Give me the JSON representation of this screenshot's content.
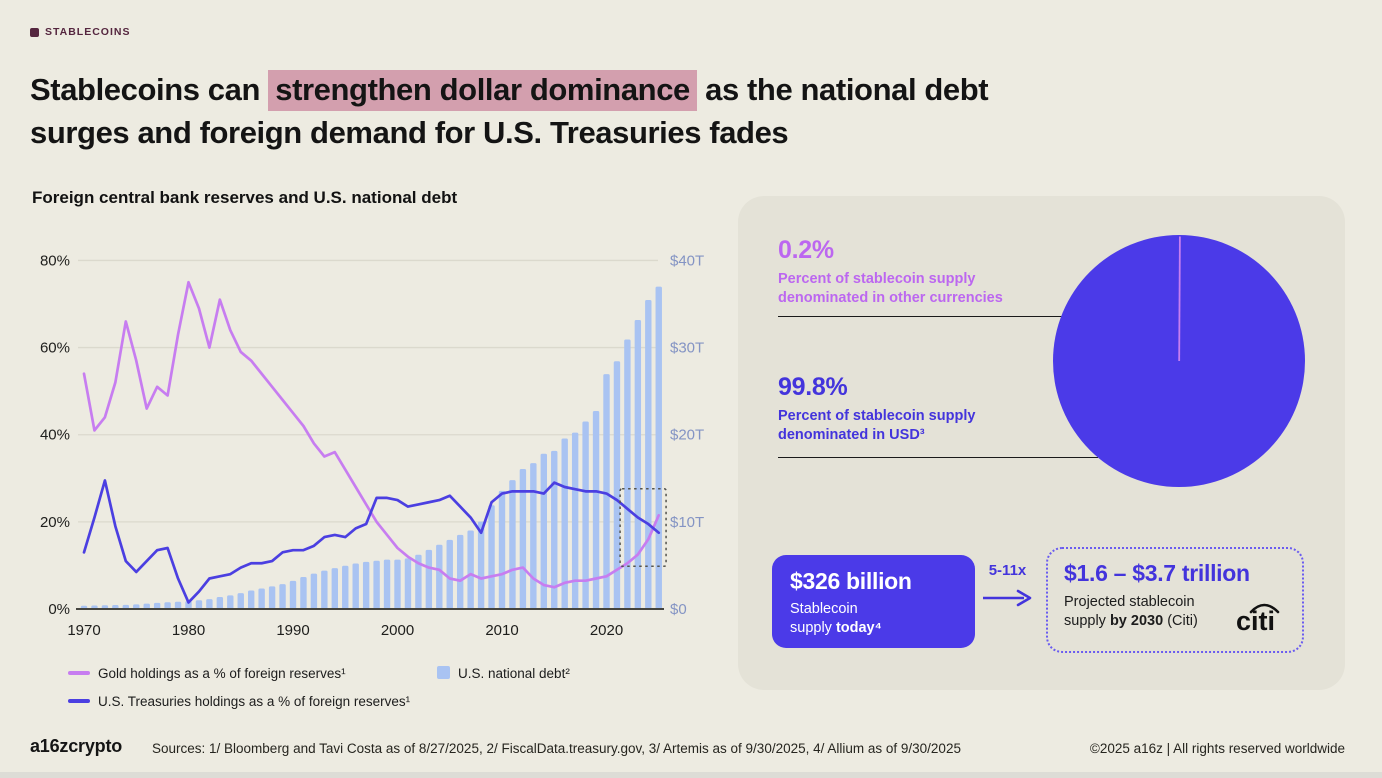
{
  "badge": {
    "label": "STABLECOINS"
  },
  "title": {
    "line1_pre": "Stablecoins can ",
    "line1_highlight": "strengthen dollar dominance",
    "line1_post": " as the national debt",
    "line2": "surges and foreign demand for U.S. Treasuries fades"
  },
  "chart_section": {
    "subtitle": "Foreign central bank reserves and U.S. national debt",
    "legend": [
      {
        "label": "Gold holdings as a % of foreign reserves¹",
        "swatch": "line",
        "color": "#c77df0"
      },
      {
        "label": "U.S. Treasuries holdings as a % of foreign reserves¹",
        "swatch": "line",
        "color": "#4b3fe1"
      },
      {
        "label": "U.S. national debt²",
        "swatch": "square",
        "color": "#a9c3f2"
      }
    ]
  },
  "chart_data": [
    {
      "type": "line+bar",
      "title": "Foreign central bank reserves and U.S. national debt",
      "x": [
        1970,
        1971,
        1972,
        1973,
        1974,
        1975,
        1976,
        1977,
        1978,
        1979,
        1980,
        1981,
        1982,
        1983,
        1984,
        1985,
        1986,
        1987,
        1988,
        1989,
        1990,
        1991,
        1992,
        1993,
        1994,
        1995,
        1996,
        1997,
        1998,
        1999,
        2000,
        2001,
        2002,
        2003,
        2004,
        2005,
        2006,
        2007,
        2008,
        2009,
        2010,
        2011,
        2012,
        2013,
        2014,
        2015,
        2016,
        2017,
        2018,
        2019,
        2020,
        2021,
        2022,
        2023,
        2024,
        2025
      ],
      "series": [
        {
          "name": "Gold holdings as a % of foreign reserves¹",
          "type": "line",
          "axis": "left",
          "color": "#c77df0",
          "values": [
            54,
            41,
            44,
            52,
            66,
            57,
            46,
            51,
            49,
            63,
            75,
            69,
            60,
            71,
            64,
            59,
            57,
            54,
            51,
            48,
            45,
            42,
            38,
            35,
            36,
            32,
            28,
            24,
            20,
            17,
            14,
            12,
            10.5,
            9.5,
            9,
            7,
            6.5,
            8,
            7,
            7.5,
            8,
            9,
            9.5,
            7,
            5.5,
            5,
            6,
            6.5,
            6.5,
            7,
            7.5,
            9,
            10.5,
            12.5,
            16,
            21.5
          ]
        },
        {
          "name": "U.S. Treasuries holdings as a % of foreign reserves¹",
          "type": "line",
          "axis": "left",
          "color": "#4b3fe1",
          "values": [
            13,
            21,
            29.5,
            19,
            11,
            8.5,
            11,
            13.5,
            14,
            7,
            1.5,
            4,
            7,
            7.5,
            8,
            9.5,
            10.5,
            10.5,
            11,
            13,
            13.5,
            13.5,
            14.5,
            16.5,
            17,
            16.5,
            18.5,
            19.5,
            25.5,
            25.5,
            25,
            23.5,
            24,
            24.5,
            25,
            26,
            23.5,
            21,
            17.5,
            24.5,
            26.5,
            27,
            27,
            27,
            26.5,
            29,
            28,
            27.5,
            27,
            27,
            26.5,
            25,
            23,
            21,
            19.5,
            17.5
          ]
        },
        {
          "name": "U.S. national debt² ($T)",
          "type": "bar",
          "axis": "right",
          "color": "#a9c3f2",
          "values": [
            0.37,
            0.4,
            0.43,
            0.46,
            0.47,
            0.53,
            0.62,
            0.7,
            0.77,
            0.83,
            0.91,
            1.0,
            1.14,
            1.38,
            1.57,
            1.82,
            2.12,
            2.35,
            2.6,
            2.86,
            3.23,
            3.67,
            4.06,
            4.41,
            4.69,
            4.97,
            5.22,
            5.41,
            5.53,
            5.66,
            5.67,
            5.81,
            6.23,
            6.78,
            7.38,
            7.93,
            8.51,
            9.01,
            10.02,
            11.91,
            13.56,
            14.79,
            16.07,
            16.74,
            17.82,
            18.15,
            19.57,
            20.24,
            21.52,
            22.72,
            26.95,
            28.43,
            30.93,
            33.17,
            35.46,
            37.0
          ]
        }
      ],
      "left_axis": {
        "ticks": [
          "0%",
          "20%",
          "40%",
          "60%",
          "80%"
        ],
        "range": [
          0,
          80
        ]
      },
      "right_axis": {
        "ticks": [
          "$0",
          "$10T",
          "$20T",
          "$30T",
          "$40T"
        ],
        "range": [
          0,
          40
        ]
      },
      "x_ticks": [
        1970,
        1980,
        1990,
        2000,
        2010,
        2020
      ],
      "highlight_box": {
        "x0": 2021.3,
        "x1": 2025.7,
        "v0": 9.8,
        "v1": 27.6
      },
      "grid": true,
      "legend_position": "bottom"
    },
    {
      "type": "pie",
      "slices": [
        {
          "label": "Percent of stablecoin supply denominated in USD³",
          "value": 99.8,
          "color": "#4b3ae8"
        },
        {
          "label": "Percent of stablecoin supply denominated in other currencies",
          "value": 0.2,
          "color": "#c77df0"
        }
      ]
    }
  ],
  "panel": {
    "other_pct": "0.2%",
    "other_label": "Percent of stablecoin supply denominated in other currencies",
    "usd_pct": "99.8%",
    "usd_label": "Percent of stablecoin supply denominated in USD³",
    "supply_box": {
      "value": "$326 billion",
      "line1": "Stablecoin",
      "line2_pre": "supply ",
      "line2_bold": "today⁴"
    },
    "multiplier": "5-11x",
    "projection_box": {
      "value": "$1.6 – $3.7 trillion",
      "line1": "Projected stablecoin",
      "line2_pre": "supply ",
      "line2_bold": "by 2030",
      "line2_post": " (Citi)",
      "logo": "citi"
    }
  },
  "footer": {
    "logo": "a16zcrypto",
    "sources": "Sources: 1/ Bloomberg and Tavi Costa as of 8/27/2025, 2/ FiscalData.treasury.gov, 3/ Artemis as of 9/30/2025, 4/ Allium as of 9/30/2025",
    "copyright": "©2025 a16z | All rights reserved worldwide"
  },
  "colors": {
    "page_bg": "#edebe1",
    "panel_bg": "#e4e2d7",
    "title_highlight": "#d39fae",
    "badge": "#55263f",
    "gold_line": "#c77df0",
    "treasuries_line": "#4b3fe1",
    "debt_bars": "#a9c3f2",
    "right_axis_text": "#8494c4",
    "pie_usd": "#4b3ae8",
    "pie_other": "#c77df0",
    "indigo_text": "#4334dc",
    "purple_text": "#bc67f0"
  }
}
